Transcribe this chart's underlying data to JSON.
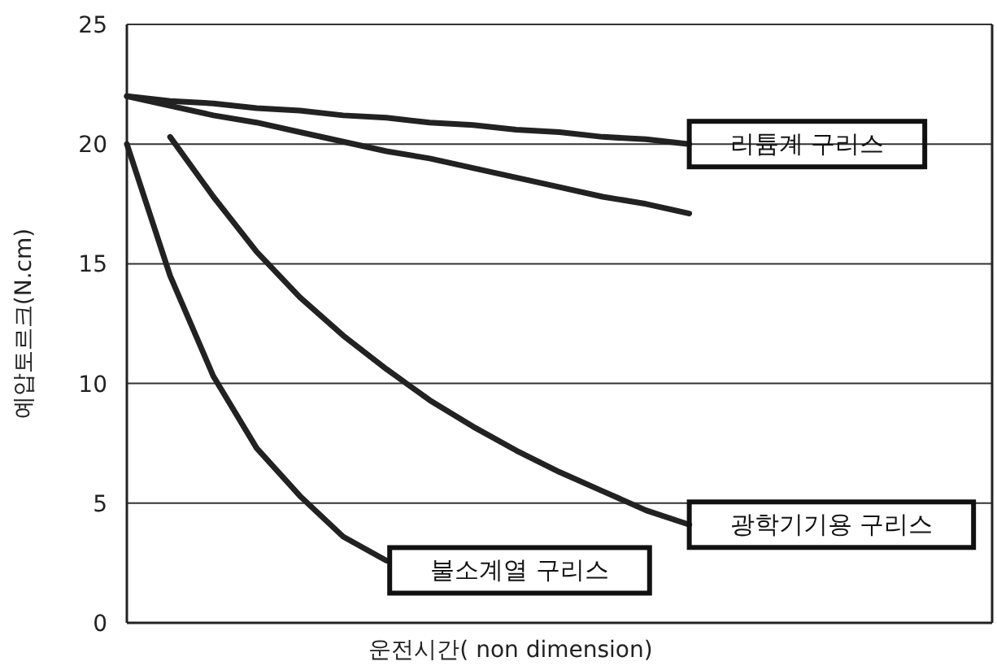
{
  "chart_data": {
    "type": "line",
    "xlabel": "운전시간( non dimension)",
    "ylabel": "예압토르크(N.cm)",
    "ylim": [
      0,
      25
    ],
    "yticks": [
      0,
      5,
      10,
      15,
      20,
      25
    ],
    "grid": "y",
    "marker": "none",
    "line_style": "solid",
    "categories": [
      null,
      null,
      null,
      null,
      null,
      null,
      null,
      null,
      null,
      null,
      null,
      null,
      null,
      null,
      null,
      null,
      null,
      null,
      null,
      null,
      null
    ],
    "series": [
      {
        "name": "리튬계 구리스",
        "color": "#222222",
        "values": [
          22,
          21.8,
          21.7,
          21.5,
          21.4,
          21.2,
          21.1,
          20.9,
          20.8,
          20.6,
          20.5,
          20.3,
          20.2,
          20,
          null,
          null,
          null,
          null,
          null,
          null,
          null
        ]
      },
      {
        "color": "#222222",
        "values": [
          22,
          21.6,
          21.2,
          20.9,
          20.5,
          20.1,
          19.7,
          19.4,
          19,
          18.6,
          18.2,
          17.8,
          17.5,
          17.1,
          null,
          null,
          null,
          null,
          null,
          null,
          null
        ]
      },
      {
        "name": "광학기기용 구리스",
        "color": "#222222",
        "values": [
          null,
          20.3,
          17.8,
          15.5,
          13.6,
          12,
          10.6,
          9.3,
          8.2,
          7.2,
          6.3,
          5.5,
          4.7,
          4.1,
          null,
          null,
          null,
          null,
          null,
          null,
          null
        ]
      },
      {
        "name": "불소계열 구리스",
        "color": "#222222",
        "values": [
          20,
          14.5,
          10.3,
          7.3,
          5.3,
          3.6,
          2.6,
          null,
          null,
          null,
          null,
          null,
          null,
          null,
          null,
          null,
          null,
          null,
          null,
          null,
          null
        ]
      }
    ]
  }
}
